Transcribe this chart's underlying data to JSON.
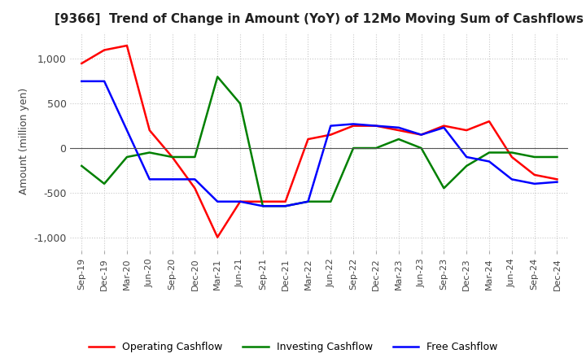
{
  "title": "[9366]  Trend of Change in Amount (YoY) of 12Mo Moving Sum of Cashflows",
  "ylabel": "Amount (million yen)",
  "x_labels": [
    "Sep-19",
    "Dec-19",
    "Mar-20",
    "Jun-20",
    "Sep-20",
    "Dec-20",
    "Mar-21",
    "Jun-21",
    "Sep-21",
    "Dec-21",
    "Mar-22",
    "Jun-22",
    "Sep-22",
    "Dec-22",
    "Mar-23",
    "Jun-23",
    "Sep-23",
    "Dec-23",
    "Mar-24",
    "Jun-24",
    "Sep-24",
    "Dec-24"
  ],
  "operating": [
    950,
    1100,
    1150,
    200,
    -100,
    -450,
    -1000,
    -600,
    -600,
    -600,
    100,
    150,
    250,
    250,
    200,
    150,
    250,
    200,
    300,
    -100,
    -300,
    -350
  ],
  "investing": [
    -200,
    -400,
    -100,
    -50,
    -100,
    -100,
    800,
    500,
    -650,
    -650,
    -600,
    -600,
    0,
    0,
    100,
    0,
    -450,
    -200,
    -50,
    -50,
    -100,
    -100
  ],
  "free": [
    750,
    750,
    200,
    -350,
    -350,
    -350,
    -600,
    -600,
    -650,
    -650,
    -600,
    250,
    270,
    250,
    230,
    150,
    230,
    -100,
    -150,
    -350,
    -400,
    -380
  ],
  "ylim": [
    -1150,
    1300
  ],
  "yticks": [
    -1000,
    -500,
    0,
    500,
    1000
  ],
  "operating_color": "#ff0000",
  "investing_color": "#008000",
  "free_color": "#0000ff",
  "grid_color": "#c8c8c8",
  "bg_color": "#ffffff"
}
